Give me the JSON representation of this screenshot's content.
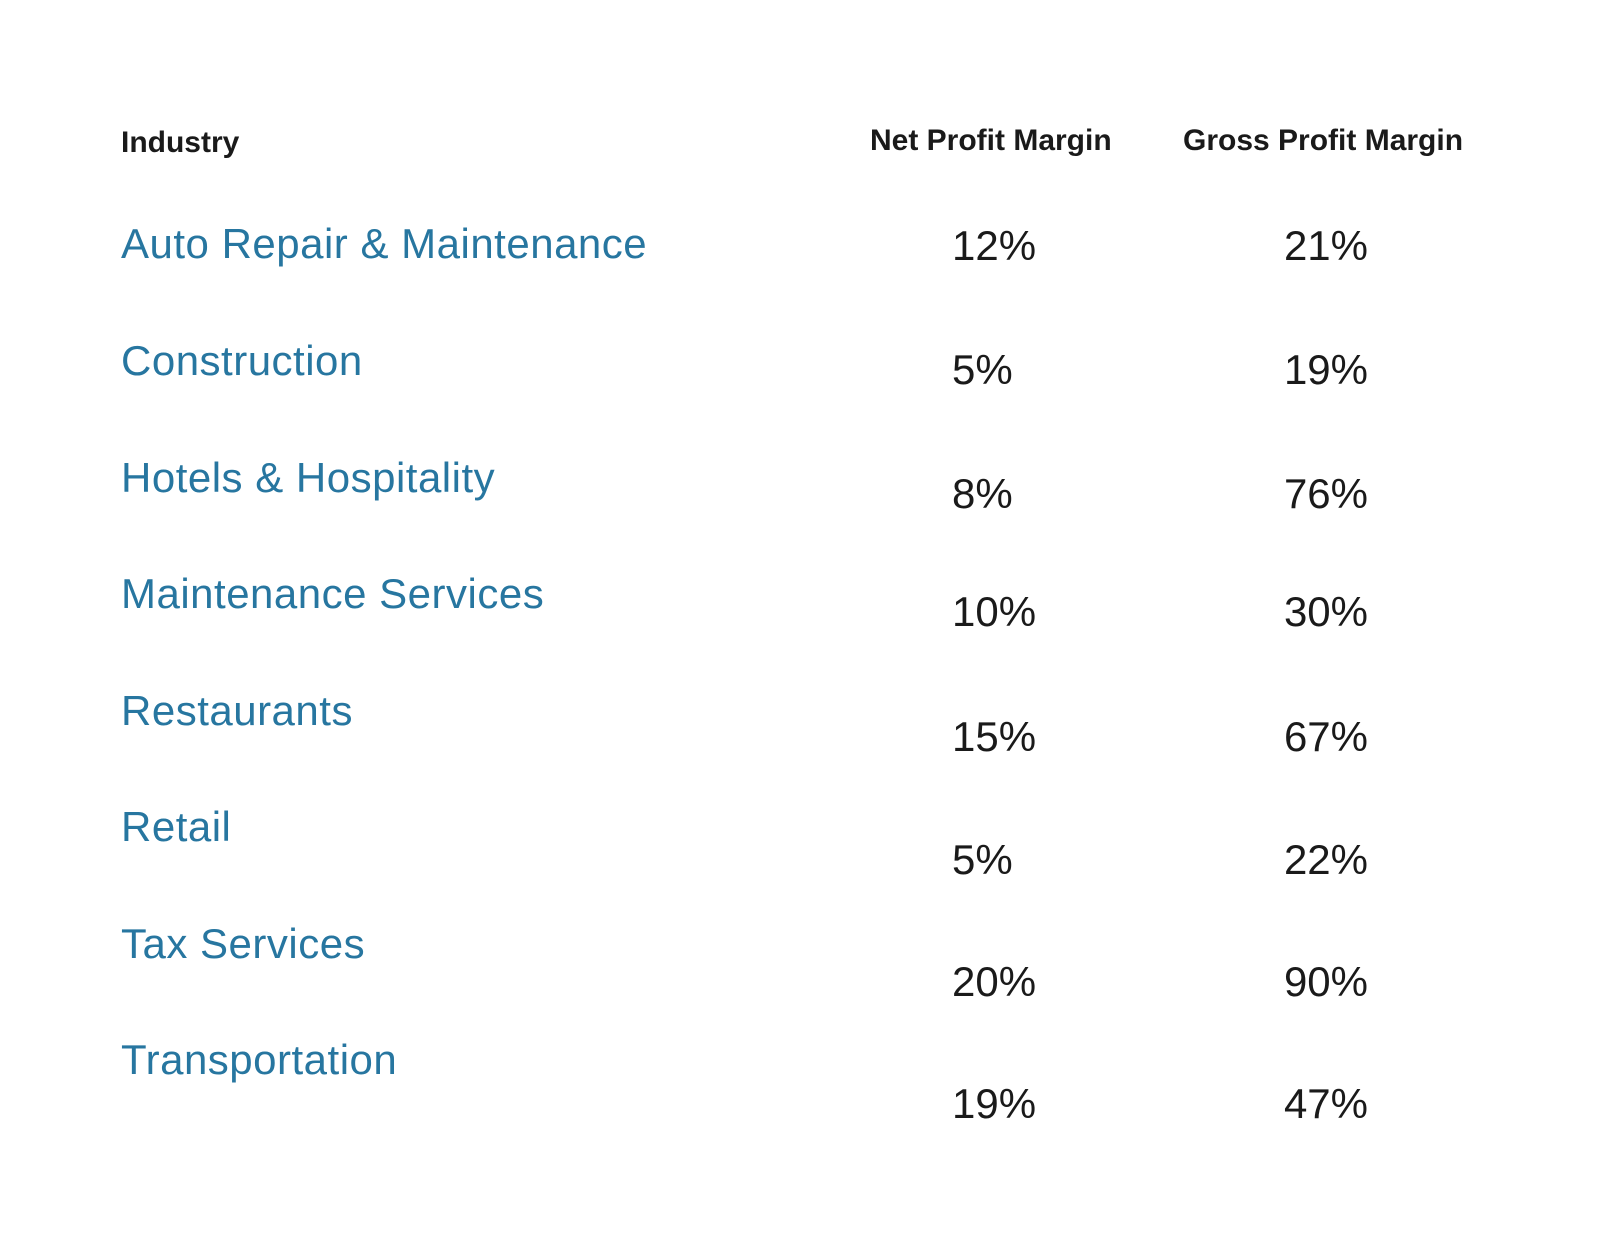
{
  "chart_data": {
    "type": "table",
    "columns": [
      "Industry",
      "Net Profit Margin",
      "Gross Profit Margin"
    ],
    "rows": [
      {
        "industry": "Auto Repair & Maintenance",
        "net": "12%",
        "gross": "21%"
      },
      {
        "industry": "Construction",
        "net": "5%",
        "gross": "19%"
      },
      {
        "industry": "Hotels & Hospitality",
        "net": "8%",
        "gross": "76%"
      },
      {
        "industry": "Maintenance Services",
        "net": "10%",
        "gross": "30%"
      },
      {
        "industry": "Restaurants",
        "net": "15%",
        "gross": "67%"
      },
      {
        "industry": "Retail",
        "net": "5%",
        "gross": "22%"
      },
      {
        "industry": "Tax Services",
        "net": "20%",
        "gross": "90%"
      },
      {
        "industry": "Transportation",
        "net": "19%",
        "gross": "47%"
      }
    ]
  },
  "colors": {
    "industry_text": "#2776a0",
    "value_text": "#1a1a1a",
    "header_text": "#1a1a1a",
    "background": "#ffffff"
  }
}
